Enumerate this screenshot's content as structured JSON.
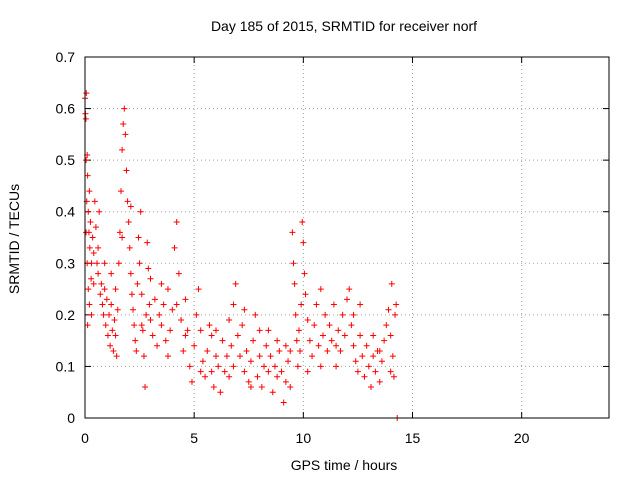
{
  "chart_data": {
    "type": "scatter",
    "title": "Day 185 of 2015, SRMTID for receiver norf",
    "xlabel": "GPS time / hours",
    "ylabel": "SRMTID / TECUs",
    "xlim": [
      0,
      24
    ],
    "ylim": [
      0,
      0.7
    ],
    "xticks": [
      0,
      5,
      10,
      15,
      20
    ],
    "yticks": [
      0,
      0.1,
      0.2,
      0.3,
      0.4,
      0.5,
      0.6,
      0.7
    ],
    "grid": true,
    "marker": "plus",
    "series_color": "#ff0000",
    "series": [
      {
        "name": "SRMTID",
        "points": [
          [
            0.0,
            0.62
          ],
          [
            0.02,
            0.59
          ],
          [
            0.04,
            0.58
          ],
          [
            0.06,
            0.63
          ],
          [
            0.05,
            0.5
          ],
          [
            0.1,
            0.51
          ],
          [
            0.12,
            0.47
          ],
          [
            0.08,
            0.42
          ],
          [
            0.15,
            0.4
          ],
          [
            0.2,
            0.44
          ],
          [
            0.18,
            0.36
          ],
          [
            0.22,
            0.33
          ],
          [
            0.25,
            0.38
          ],
          [
            0.3,
            0.3
          ],
          [
            0.28,
            0.27
          ],
          [
            0.35,
            0.35
          ],
          [
            0.4,
            0.32
          ],
          [
            0.1,
            0.3
          ],
          [
            0.15,
            0.25
          ],
          [
            0.2,
            0.22
          ],
          [
            0.05,
            0.36
          ],
          [
            0.12,
            0.18
          ],
          [
            0.45,
            0.42
          ],
          [
            0.5,
            0.37
          ],
          [
            0.55,
            0.3
          ],
          [
            0.6,
            0.28
          ],
          [
            0.65,
            0.4
          ],
          [
            0.7,
            0.24
          ],
          [
            0.75,
            0.26
          ],
          [
            0.8,
            0.22
          ],
          [
            0.85,
            0.2
          ],
          [
            0.9,
            0.25
          ],
          [
            0.95,
            0.18
          ],
          [
            1.0,
            0.23
          ],
          [
            1.05,
            0.16
          ],
          [
            1.1,
            0.2
          ],
          [
            1.15,
            0.14
          ],
          [
            1.2,
            0.22
          ],
          [
            1.25,
            0.17
          ],
          [
            1.3,
            0.13
          ],
          [
            1.35,
            0.19
          ],
          [
            1.4,
            0.25
          ],
          [
            1.45,
            0.12
          ],
          [
            1.5,
            0.21
          ],
          [
            1.55,
            0.3
          ],
          [
            1.6,
            0.36
          ],
          [
            1.65,
            0.44
          ],
          [
            1.7,
            0.52
          ],
          [
            1.75,
            0.57
          ],
          [
            1.8,
            0.6
          ],
          [
            1.85,
            0.55
          ],
          [
            1.9,
            0.48
          ],
          [
            1.95,
            0.42
          ],
          [
            2.0,
            0.38
          ],
          [
            2.05,
            0.33
          ],
          [
            2.1,
            0.28
          ],
          [
            2.15,
            0.24
          ],
          [
            2.2,
            0.21
          ],
          [
            2.25,
            0.18
          ],
          [
            2.3,
            0.15
          ],
          [
            2.35,
            0.13
          ],
          [
            2.4,
            0.26
          ],
          [
            2.45,
            0.35
          ],
          [
            2.5,
            0.3
          ],
          [
            2.55,
            0.4
          ],
          [
            2.6,
            0.24
          ],
          [
            2.65,
            0.17
          ],
          [
            2.7,
            0.12
          ],
          [
            2.75,
            0.06
          ],
          [
            2.8,
            0.2
          ],
          [
            2.85,
            0.34
          ],
          [
            2.9,
            0.29
          ],
          [
            2.95,
            0.22
          ],
          [
            3.0,
            0.19
          ],
          [
            3.1,
            0.16
          ],
          [
            3.2,
            0.23
          ],
          [
            3.3,
            0.14
          ],
          [
            3.4,
            0.2
          ],
          [
            3.5,
            0.18
          ],
          [
            3.6,
            0.22
          ],
          [
            3.7,
            0.15
          ],
          [
            3.8,
            0.25
          ],
          [
            3.9,
            0.17
          ],
          [
            4.0,
            0.21
          ],
          [
            4.1,
            0.33
          ],
          [
            4.2,
            0.38
          ],
          [
            4.3,
            0.28
          ],
          [
            4.4,
            0.19
          ],
          [
            4.5,
            0.13
          ],
          [
            4.6,
            0.23
          ],
          [
            4.7,
            0.17
          ],
          [
            4.8,
            0.1
          ],
          [
            4.9,
            0.07
          ],
          [
            5.0,
            0.14
          ],
          [
            5.1,
            0.2
          ],
          [
            5.2,
            0.25
          ],
          [
            5.3,
            0.17
          ],
          [
            5.4,
            0.11
          ],
          [
            5.5,
            0.08
          ],
          [
            5.6,
            0.13
          ],
          [
            5.7,
            0.18
          ],
          [
            5.8,
            0.09
          ],
          [
            5.9,
            0.06
          ],
          [
            6.0,
            0.12
          ],
          [
            6.1,
            0.1
          ],
          [
            6.2,
            0.05
          ],
          [
            6.3,
            0.15
          ],
          [
            6.4,
            0.09
          ],
          [
            6.5,
            0.12
          ],
          [
            6.6,
            0.08
          ],
          [
            6.7,
            0.14
          ],
          [
            6.8,
            0.22
          ],
          [
            6.9,
            0.26
          ],
          [
            7.0,
            0.16
          ],
          [
            7.1,
            0.12
          ],
          [
            7.2,
            0.18
          ],
          [
            7.3,
            0.09
          ],
          [
            7.4,
            0.13
          ],
          [
            7.5,
            0.07
          ],
          [
            7.6,
            0.11
          ],
          [
            7.7,
            0.15
          ],
          [
            7.8,
            0.2
          ],
          [
            7.9,
            0.08
          ],
          [
            8.0,
            0.12
          ],
          [
            8.1,
            0.06
          ],
          [
            8.2,
            0.1
          ],
          [
            8.3,
            0.14
          ],
          [
            8.4,
            0.09
          ],
          [
            8.5,
            0.12
          ],
          [
            8.6,
            0.05
          ],
          [
            8.7,
            0.1
          ],
          [
            8.8,
            0.08
          ],
          [
            8.9,
            0.13
          ],
          [
            9.0,
            0.09
          ],
          [
            9.1,
            0.03
          ],
          [
            9.2,
            0.07
          ],
          [
            9.3,
            0.11
          ],
          [
            9.4,
            0.06
          ],
          [
            9.5,
            0.36
          ],
          [
            9.55,
            0.3
          ],
          [
            9.6,
            0.26
          ],
          [
            9.65,
            0.2
          ],
          [
            9.7,
            0.15
          ],
          [
            9.75,
            0.1
          ],
          [
            9.8,
            0.17
          ],
          [
            9.85,
            0.13
          ],
          [
            9.9,
            0.22
          ],
          [
            9.95,
            0.38
          ],
          [
            10.0,
            0.34
          ],
          [
            10.05,
            0.28
          ],
          [
            10.1,
            0.24
          ],
          [
            10.2,
            0.19
          ],
          [
            10.3,
            0.15
          ],
          [
            10.4,
            0.12
          ],
          [
            10.5,
            0.18
          ],
          [
            10.6,
            0.22
          ],
          [
            10.7,
            0.14
          ],
          [
            10.8,
            0.1
          ],
          [
            10.9,
            0.16
          ],
          [
            11.0,
            0.2
          ],
          [
            11.1,
            0.13
          ],
          [
            11.2,
            0.18
          ],
          [
            11.3,
            0.15
          ],
          [
            11.4,
            0.22
          ],
          [
            11.5,
            0.1
          ],
          [
            11.6,
            0.17
          ],
          [
            11.7,
            0.13
          ],
          [
            11.8,
            0.2
          ],
          [
            11.9,
            0.16
          ],
          [
            12.0,
            0.23
          ],
          [
            12.1,
            0.25
          ],
          [
            12.2,
            0.18
          ],
          [
            12.3,
            0.14
          ],
          [
            12.4,
            0.11
          ],
          [
            12.5,
            0.09
          ],
          [
            12.6,
            0.16
          ],
          [
            12.7,
            0.12
          ],
          [
            12.8,
            0.08
          ],
          [
            12.9,
            0.14
          ],
          [
            13.0,
            0.1
          ],
          [
            13.1,
            0.06
          ],
          [
            13.2,
            0.12
          ],
          [
            13.3,
            0.09
          ],
          [
            13.4,
            0.13
          ],
          [
            13.5,
            0.07
          ],
          [
            13.6,
            0.11
          ],
          [
            13.7,
            0.15
          ],
          [
            13.8,
            0.18
          ],
          [
            13.9,
            0.21
          ],
          [
            14.0,
            0.16
          ],
          [
            14.05,
            0.26
          ],
          [
            14.1,
            0.12
          ],
          [
            14.15,
            0.08
          ],
          [
            14.2,
            0.2
          ],
          [
            14.25,
            0.22
          ],
          [
            14.3,
            0.0
          ],
          [
            0.3,
            0.2
          ],
          [
            0.6,
            0.33
          ],
          [
            1.2,
            0.28
          ],
          [
            1.7,
            0.35
          ],
          [
            2.1,
            0.41
          ],
          [
            3.5,
            0.26
          ],
          [
            4.2,
            0.22
          ],
          [
            5.8,
            0.16
          ],
          [
            6.6,
            0.19
          ],
          [
            7.3,
            0.21
          ],
          [
            8.4,
            0.17
          ],
          [
            9.2,
            0.14
          ],
          [
            10.8,
            0.25
          ],
          [
            12.3,
            0.2
          ],
          [
            13.2,
            0.16
          ],
          [
            0.4,
            0.26
          ],
          [
            0.9,
            0.3
          ],
          [
            1.4,
            0.16
          ],
          [
            2.6,
            0.18
          ],
          [
            3.0,
            0.27
          ],
          [
            3.8,
            0.12
          ],
          [
            4.6,
            0.16
          ],
          [
            5.3,
            0.09
          ],
          [
            6.0,
            0.17
          ],
          [
            6.8,
            0.1
          ],
          [
            7.6,
            0.06
          ],
          [
            8.0,
            0.17
          ],
          [
            8.8,
            0.15
          ],
          [
            9.4,
            0.13
          ],
          [
            10.2,
            0.09
          ],
          [
            11.5,
            0.14
          ],
          [
            12.6,
            0.22
          ],
          [
            13.5,
            0.13
          ],
          [
            14.0,
            0.09
          ]
        ]
      }
    ]
  }
}
